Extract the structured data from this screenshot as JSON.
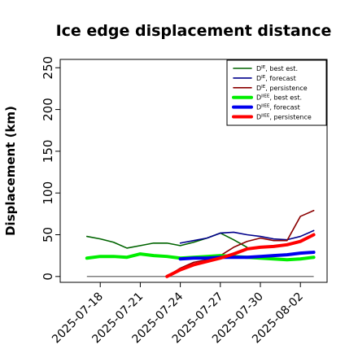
{
  "chart_data": {
    "type": "line",
    "title": "Ice edge displacement distance",
    "xlabel": "",
    "ylabel": "Displacement (km)",
    "xlim": [
      "2025-07-15",
      "2025-08-04"
    ],
    "ylim": [
      -7,
      260
    ],
    "yticks": [
      0,
      50,
      100,
      150,
      200,
      250
    ],
    "xticks": [
      "2025-07-18",
      "2025-07-21",
      "2025-07-24",
      "2025-07-27",
      "2025-07-30",
      "2025-08-02"
    ],
    "highlight_xtick": "2025-07-24",
    "highlight_color": "#228b22",
    "grid": false,
    "legend_position": "top-right",
    "reference_line": {
      "value": 0,
      "from": "2025-07-17",
      "to": "2025-08-03",
      "color": "#555555"
    },
    "series": [
      {
        "name": "D^IE, best est.",
        "label_base": "D",
        "label_sup": "IE",
        "label_rest": ", best est.",
        "color": "#006400",
        "width": 1.6,
        "x": [
          "2025-07-17",
          "2025-07-18",
          "2025-07-19",
          "2025-07-20",
          "2025-07-21",
          "2025-07-22",
          "2025-07-23",
          "2025-07-24",
          "2025-07-25",
          "2025-07-26",
          "2025-07-27",
          "2025-07-28",
          "2025-07-29"
        ],
        "y": [
          48,
          45,
          41,
          34,
          37,
          40,
          40,
          37,
          41,
          46,
          52,
          44,
          35
        ]
      },
      {
        "name": "D^IE, forecast",
        "label_base": "D",
        "label_sup": "IE",
        "label_rest": ", forecast",
        "color": "#00008b",
        "width": 1.6,
        "x": [
          "2025-07-24",
          "2025-07-25",
          "2025-07-26",
          "2025-07-27",
          "2025-07-28",
          "2025-07-29",
          "2025-07-30",
          "2025-07-31",
          "2025-08-01",
          "2025-08-02",
          "2025-08-03"
        ],
        "y": [
          40,
          43,
          46,
          52,
          53,
          50,
          48,
          45,
          44,
          48,
          55
        ]
      },
      {
        "name": "D^IE, persistence",
        "label_base": "D",
        "label_sup": "IE",
        "label_rest": ", persistence",
        "color": "#8b0000",
        "width": 1.6,
        "x": [
          "2025-07-23",
          "2025-07-24",
          "2025-07-25",
          "2025-07-26",
          "2025-07-27",
          "2025-07-28",
          "2025-07-29",
          "2025-07-30",
          "2025-07-31",
          "2025-08-01",
          "2025-08-02",
          "2025-08-03"
        ],
        "y": [
          0,
          10,
          17,
          20,
          25,
          35,
          42,
          46,
          43,
          43,
          72,
          79
        ]
      },
      {
        "name": "D^IIEE, best est.",
        "label_base": "D",
        "label_sup": "IIEE",
        "label_rest": ", best est.",
        "color": "#00ee00",
        "width": 4,
        "x": [
          "2025-07-17",
          "2025-07-18",
          "2025-07-19",
          "2025-07-20",
          "2025-07-21",
          "2025-07-22",
          "2025-07-23",
          "2025-07-24",
          "2025-07-25",
          "2025-07-26",
          "2025-07-27",
          "2025-07-28",
          "2025-07-29",
          "2025-07-30",
          "2025-07-31",
          "2025-08-01",
          "2025-08-02",
          "2025-08-03"
        ],
        "y": [
          22,
          24,
          24,
          23,
          27,
          25,
          24,
          22,
          23,
          24,
          25,
          24,
          23,
          22,
          21,
          20,
          21,
          23
        ]
      },
      {
        "name": "D^IIEE, forecast",
        "label_base": "D",
        "label_sup": "IIEE",
        "label_rest": ", forecast",
        "color": "#0000ee",
        "width": 4,
        "x": [
          "2025-07-24",
          "2025-07-25",
          "2025-07-26",
          "2025-07-27",
          "2025-07-28",
          "2025-07-29",
          "2025-07-30",
          "2025-07-31",
          "2025-08-01",
          "2025-08-02",
          "2025-08-03"
        ],
        "y": [
          21,
          22,
          22,
          23,
          23,
          23,
          24,
          25,
          26,
          28,
          29
        ]
      },
      {
        "name": "D^IIEE, persistence",
        "label_base": "D",
        "label_sup": "IIEE",
        "label_rest": ", persistence",
        "color": "#ff0000",
        "width": 4,
        "x": [
          "2025-07-23",
          "2025-07-24",
          "2025-07-25",
          "2025-07-26",
          "2025-07-27",
          "2025-07-28",
          "2025-07-29",
          "2025-07-30",
          "2025-07-31",
          "2025-08-01",
          "2025-08-02",
          "2025-08-03"
        ],
        "y": [
          0,
          8,
          14,
          18,
          22,
          27,
          33,
          35,
          36,
          38,
          42,
          50
        ]
      }
    ]
  }
}
